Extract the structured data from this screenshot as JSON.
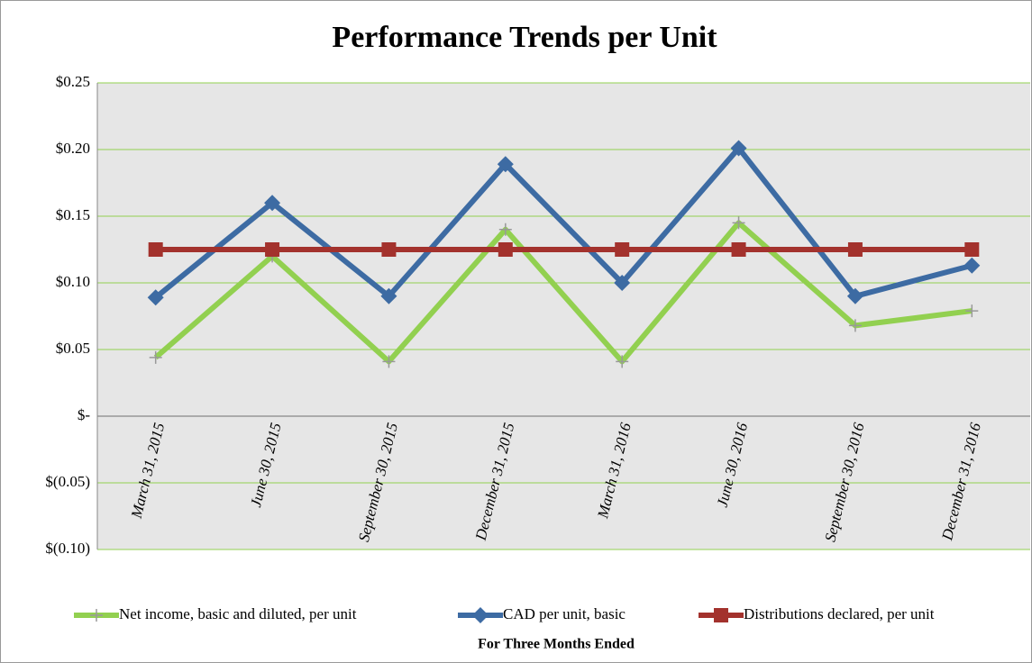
{
  "chart_data": {
    "type": "line",
    "title": "Performance Trends per Unit",
    "x_label": "For Three Months  Ended",
    "categories": [
      "March 31, 2015",
      "June 30, 2015",
      "September 30, 2015",
      "December 31, 2015",
      "March 31, 2016",
      "June 30, 2016",
      "September 30, 2016",
      "December 31, 2016"
    ],
    "series": [
      {
        "name": "Net income, basic and diluted, per unit",
        "color": "#92d050",
        "marker": "plus",
        "values": [
          0.044,
          0.12,
          0.041,
          0.14,
          0.041,
          0.145,
          0.068,
          0.079
        ]
      },
      {
        "name": "CAD per unit, basic",
        "color": "#3d6ba3",
        "marker": "diamond",
        "values": [
          0.089,
          0.16,
          0.09,
          0.189,
          0.1,
          0.201,
          0.09,
          0.113
        ]
      },
      {
        "name": "Distributions declared, per unit",
        "color": "#a3322d",
        "marker": "square",
        "values": [
          0.125,
          0.125,
          0.125,
          0.125,
          0.125,
          0.125,
          0.125,
          0.125
        ]
      }
    ],
    "ylim": [
      -0.1,
      0.25
    ],
    "yticks": [
      {
        "value": -0.1,
        "label": "$(0.10)"
      },
      {
        "value": -0.05,
        "label": "$(0.05)"
      },
      {
        "value": 0,
        "label": "$-"
      },
      {
        "value": 0.05,
        "label": "$0.05"
      },
      {
        "value": 0.1,
        "label": "$0.10"
      },
      {
        "value": 0.15,
        "label": "$0.15"
      },
      {
        "value": 0.2,
        "label": "$0.20"
      },
      {
        "value": 0.25,
        "label": "$0.25"
      }
    ],
    "grid": true,
    "legend": "bottom"
  }
}
